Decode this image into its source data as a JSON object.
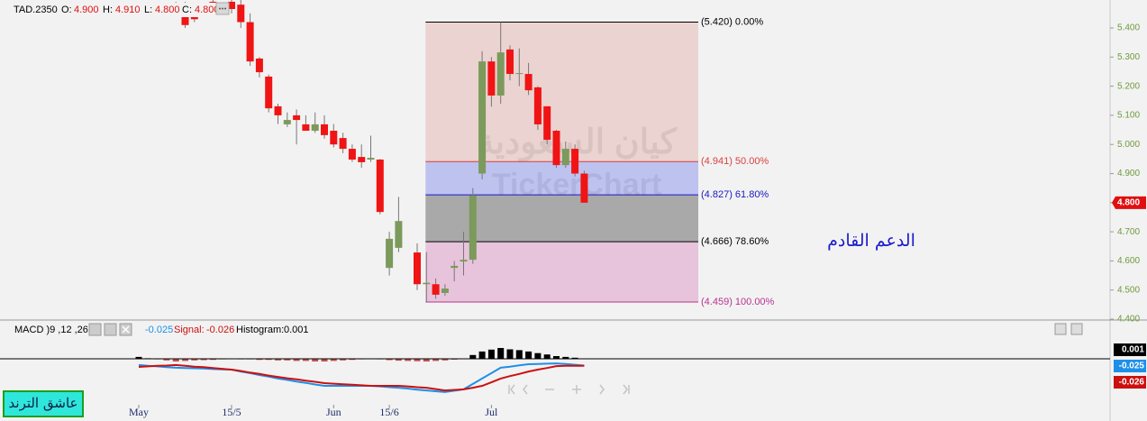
{
  "chart_data": [
    {
      "type": "candlestick",
      "symbol": "TAD.2350",
      "header": [
        {
          "label": "O:",
          "value": "4.900"
        },
        {
          "label": "H:",
          "value": "4.910"
        },
        {
          "label": "L:",
          "value": "4.800"
        },
        {
          "label": "C:",
          "value": "4.800"
        }
      ],
      "categories": [
        "May",
        null,
        null,
        null,
        null,
        null,
        null,
        null,
        null,
        null,
        "15/5",
        null,
        null,
        null,
        null,
        null,
        null,
        null,
        null,
        null,
        null,
        "Jun",
        null,
        null,
        null,
        null,
        null,
        "15/6",
        null,
        null,
        null,
        null,
        null,
        null,
        null,
        null,
        null,
        null,
        "Jul",
        null,
        null,
        null,
        null,
        null,
        null,
        null,
        null,
        null,
        null
      ],
      "open": [
        null,
        null,
        null,
        null,
        5.45,
        5.465,
        5.45,
        null,
        5.49,
        null,
        5.49,
        5.48,
        5.42,
        5.295,
        5.233,
        5.131,
        5.069,
        5.1,
        5.069,
        5.047,
        5.069,
        5.047,
        5.022,
        4.985,
        4.957,
        4.948,
        4.948,
        4.576,
        4.645,
        null,
        4.629,
        4.52,
        4.52,
        4.49,
        4.576,
        4.598,
        4.604,
        4.9,
        5.285,
        5.168,
        5.326,
        5.242,
        5.242,
        5.196,
        5.131,
        5.047,
        4.929,
        4.985,
        4.9
      ],
      "high": [
        null,
        null,
        null,
        null,
        5.49,
        5.49,
        5.47,
        null,
        5.5,
        null,
        5.5,
        5.5,
        5.45,
        5.3,
        5.24,
        5.14,
        5.11,
        5.12,
        5.1,
        5.11,
        5.1,
        5.07,
        5.04,
        5.0,
        5.0,
        5.03,
        4.95,
        4.7,
        4.82,
        null,
        4.66,
        4.63,
        4.54,
        4.52,
        4.6,
        4.7,
        4.85,
        5.32,
        5.3,
        5.42,
        5.34,
        5.33,
        5.28,
        5.2,
        5.13,
        5.05,
        5.01,
        5.0,
        4.91
      ],
      "low": [
        null,
        null,
        null,
        null,
        5.44,
        5.4,
        5.42,
        null,
        5.46,
        null,
        5.45,
        5.4,
        5.27,
        5.23,
        5.11,
        5.07,
        5.06,
        5.0,
        5.05,
        5.04,
        5.02,
        4.99,
        4.97,
        4.94,
        4.92,
        4.94,
        4.76,
        4.55,
        4.63,
        null,
        4.5,
        4.46,
        4.47,
        4.48,
        4.53,
        4.55,
        4.59,
        4.88,
        5.13,
        5.14,
        5.22,
        5.2,
        5.17,
        5.05,
        5.0,
        4.92,
        4.92,
        4.89,
        4.8
      ],
      "close": [
        null,
        null,
        null,
        null,
        5.47,
        5.41,
        5.43,
        null,
        5.48,
        null,
        5.465,
        5.42,
        5.285,
        5.248,
        5.124,
        5.1,
        5.084,
        5.084,
        5.047,
        5.069,
        5.032,
        5.0,
        4.985,
        4.948,
        4.939,
        4.954,
        4.768,
        4.676,
        4.737,
        null,
        4.52,
        4.525,
        4.484,
        4.505,
        4.583,
        4.604,
        4.824,
        5.285,
        5.168,
        5.316,
        5.242,
        5.245,
        5.186,
        5.069,
        5.016,
        4.929,
        4.985,
        4.9,
        4.8
      ],
      "up_color": "#7b9a5b",
      "down_color": "#f01414",
      "ylim": [
        4.397,
        5.496
      ],
      "yticks": [
        {
          "value": 4.4,
          "label": "4.400"
        },
        {
          "value": 4.5,
          "label": "4.500"
        },
        {
          "value": 4.6,
          "label": "4.600"
        },
        {
          "value": 4.7,
          "label": "4.700"
        },
        {
          "value": 4.8,
          "label": "4.800"
        },
        {
          "value": 4.9,
          "label": "4.900"
        },
        {
          "value": 5.0,
          "label": "5.000"
        },
        {
          "value": 5.1,
          "label": "5.100"
        },
        {
          "value": 5.2,
          "label": "5.200"
        },
        {
          "value": 5.3,
          "label": "5.300"
        },
        {
          "value": 5.4,
          "label": "5.400"
        }
      ],
      "last_price": {
        "value": 4.8,
        "label": "4.800"
      },
      "fibonacci": {
        "levels": [
          {
            "value": 5.42,
            "label": "(5.420) 0.00%",
            "color": "#000000"
          },
          {
            "value": 4.941,
            "label": "(4.941) 50.00%",
            "color": "#d94040"
          },
          {
            "value": 4.827,
            "label": "(4.827) 61.80%",
            "color": "#1a1ac0"
          },
          {
            "value": 4.666,
            "label": "(4.666) 78.60%",
            "color": "#000000"
          },
          {
            "value": 4.459,
            "label": "(4.459) 100.00%",
            "color": "#b8338e"
          }
        ],
        "zone_colors": [
          "#ebd3d1",
          "#bec2ef",
          "#a9a9a9",
          "#e7c4db"
        ]
      },
      "annotation": "الدعم القادم",
      "watermarks": [
        "كيان السعودية",
        "TickerChart"
      ],
      "badge": "عاشق الترند"
    },
    {
      "type": "macd",
      "title": "MACD )9 ,12 ,26(",
      "ylim": [
        -0.2,
        0.08
      ],
      "series": [
        {
          "color": "#1e8fe8",
          "values": [
            -0.023,
            -0.026,
            -0.028,
            -0.031,
            -0.033,
            -0.034,
            -0.035,
            -0.036,
            -0.038,
            -0.039,
            -0.04,
            -0.047,
            -0.053,
            -0.06,
            -0.066,
            -0.073,
            -0.078,
            -0.084,
            -0.089,
            -0.095,
            -0.1,
            -0.1,
            -0.1,
            -0.1,
            -0.1,
            -0.1,
            -0.102,
            -0.105,
            -0.107,
            -0.11,
            -0.114,
            -0.117,
            -0.12,
            -0.123,
            -0.118,
            -0.113,
            -0.093,
            -0.073,
            -0.053,
            -0.033,
            -0.029,
            -0.024,
            -0.02,
            -0.019,
            -0.018,
            -0.017,
            -0.019,
            -0.022,
            -0.025
          ]
        },
        {
          "name": "Signal:",
          "color": "#cc1010",
          "values": [
            -0.03,
            -0.028,
            -0.026,
            -0.025,
            -0.023,
            -0.026,
            -0.029,
            -0.031,
            -0.034,
            -0.037,
            -0.04,
            -0.045,
            -0.051,
            -0.056,
            -0.062,
            -0.067,
            -0.072,
            -0.076,
            -0.081,
            -0.085,
            -0.09,
            -0.092,
            -0.094,
            -0.096,
            -0.098,
            -0.1,
            -0.1,
            -0.1,
            -0.1,
            -0.102,
            -0.105,
            -0.107,
            -0.112,
            -0.117,
            -0.115,
            -0.113,
            -0.107,
            -0.1,
            -0.087,
            -0.073,
            -0.064,
            -0.056,
            -0.047,
            -0.04,
            -0.034,
            -0.027,
            -0.026,
            -0.026,
            -0.026
          ]
        },
        {
          "name": "Histogram:",
          "up_color": "#000000",
          "down_color": "#c0504d",
          "values": [
            0.007,
            0.002,
            -0.002,
            -0.006,
            -0.01,
            -0.008,
            -0.006,
            -0.005,
            -0.004,
            -0.002,
            0,
            -0.002,
            -0.002,
            -0.004,
            -0.004,
            -0.006,
            -0.006,
            -0.008,
            -0.008,
            -0.01,
            -0.01,
            -0.008,
            -0.006,
            -0.004,
            -0.002,
            0,
            -0.002,
            -0.005,
            -0.007,
            -0.008,
            -0.009,
            -0.01,
            -0.008,
            -0.006,
            -0.003,
            0,
            0.014,
            0.027,
            0.034,
            0.04,
            0.035,
            0.032,
            0.027,
            0.021,
            0.016,
            0.01,
            0.007,
            0.004,
            0.001
          ]
        }
      ]
    }
  ]
}
